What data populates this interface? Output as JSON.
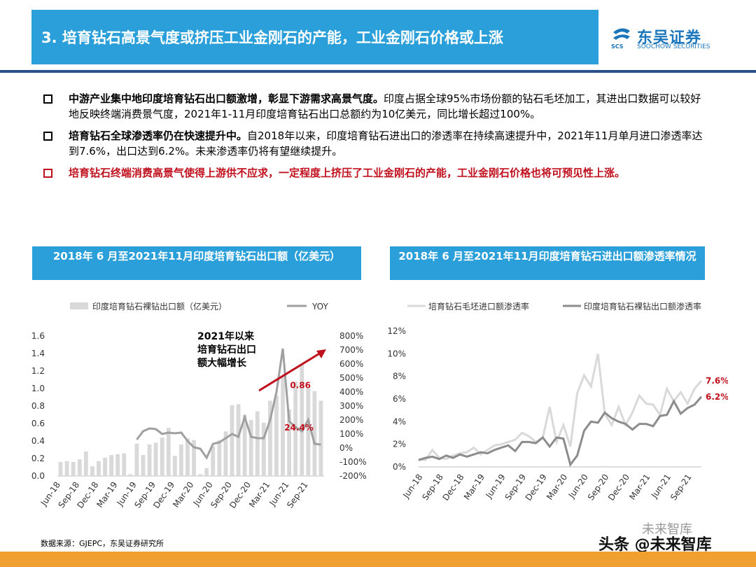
{
  "header": {
    "title": "3. 培育钻石高景气度或挤压工业金刚石的产能，工业金刚石价格或上涨",
    "logo_cn": "东吴证券",
    "logo_en": "SOOCHOW SECURITIES",
    "logo_abbr": "SCS"
  },
  "bullets": [
    {
      "bold": "中游产业集中地印度培育钻石出口额激增，彰显下游需求高景气度。",
      "text": "印度占据全球95%市场份额的钻石毛坯加工，其进出口数据可以较好地反映终端消费景气度，2021年1-11月印度培育钻石出口总额约为10亿美元，同比增长超过100%。"
    },
    {
      "bold": "培育钻石全球渗透率仍在快速提升中。",
      "text": "自2018年以来，印度培育钻石进出口的渗透率在持续高速提升中，2021年11月单月进口渗透率达到7.6%，出口达到6.2%。未来渗透率仍将有望继续提升。"
    },
    {
      "bold": "培育钻石终端消费高景气使得上游供不应求，一定程度上挤压了工业金刚石的产能，工业金刚石价格也将可预见性上涨。",
      "text": ""
    }
  ],
  "chart1": {
    "title": "2018年 6 月至2021年11月印度培育钻石出口额（亿美元）",
    "legend_bar": "印度培育钻石裸钻出口额（亿美元）",
    "legend_line": "YOY",
    "annotation": "2021年以来培育钻石出口额大幅增长",
    "annotation_lines": [
      "2021年以来",
      "培育钻石出口",
      "额大幅增长"
    ],
    "label_last_bar": "0.86",
    "label_last_yoy": "24.4%",
    "left_ticks": [
      "0.0",
      "0.2",
      "0.4",
      "0.6",
      "0.8",
      "1.0",
      "1.2",
      "1.4",
      "1.6"
    ],
    "right_ticks": [
      "-200%",
      "-100%",
      "0%",
      "100%",
      "200%",
      "300%",
      "400%",
      "500%",
      "600%",
      "700%",
      "800%"
    ],
    "x_ticks": [
      "Jun-18",
      "Sep-18",
      "Dec-18",
      "Mar-19",
      "Jun-19",
      "Sep-19",
      "Dec-19",
      "Mar-20",
      "Jun-20",
      "Sep-20",
      "Dec-20",
      "Mar-21",
      "Jun-21",
      "Sep-21"
    ]
  },
  "chart2": {
    "title": "2018年 6 月至2021年11月印度培育钻石进出口额渗透率情况",
    "legend_import": "培育钻石毛坯进口额渗透率",
    "legend_export": "印度培育钻石裸钻出口额渗透率",
    "label_import": "7.6%",
    "label_export": "6.2%",
    "y_ticks": [
      "0%",
      "2%",
      "4%",
      "6%",
      "8%",
      "10%",
      "12%"
    ],
    "x_ticks": [
      "Jun-18",
      "Sep-18",
      "Dec-18",
      "Mar-19",
      "Jun-19",
      "Sep-19",
      "Dec-19",
      "Mar-20",
      "Jun-20",
      "Sep-20",
      "Dec-20",
      "Mar-21",
      "Jun-21",
      "Sep-21"
    ]
  },
  "chart_data": [
    {
      "type": "bar",
      "title": "2018年 6 月至2021年11月印度培育钻石出口额（亿美元）",
      "x": [
        "2018-06",
        "2018-07",
        "2018-08",
        "2018-09",
        "2018-10",
        "2018-11",
        "2018-12",
        "2019-01",
        "2019-02",
        "2019-03",
        "2019-04",
        "2019-05",
        "2019-06",
        "2019-07",
        "2019-08",
        "2019-09",
        "2019-10",
        "2019-11",
        "2019-12",
        "2020-01",
        "2020-02",
        "2020-03",
        "2020-04",
        "2020-05",
        "2020-06",
        "2020-07",
        "2020-08",
        "2020-09",
        "2020-10",
        "2020-11",
        "2020-12",
        "2021-01",
        "2021-02",
        "2021-03",
        "2021-04",
        "2021-05",
        "2021-06",
        "2021-07",
        "2021-08",
        "2021-09",
        "2021-10",
        "2021-11"
      ],
      "ylim": [
        0,
        1.6
      ],
      "y2lim": [
        -200,
        800
      ],
      "series": [
        {
          "name": "印度培育钻石裸钻出口额（亿美元）",
          "axis": "left",
          "type": "bar",
          "values": [
            0.16,
            0.17,
            0.16,
            0.19,
            0.28,
            0.11,
            0.17,
            0.21,
            0.24,
            0.25,
            0.26,
            0.02,
            0.37,
            0.24,
            0.36,
            0.38,
            0.44,
            0.55,
            0.23,
            0.36,
            0.43,
            0.41,
            0.02,
            0.09,
            0.34,
            0.41,
            0.51,
            0.81,
            0.82,
            0.7,
            0.64,
            0.74,
            0.61,
            0.86,
            0.92,
            1.15,
            0.76,
            1.08,
            1.28,
            1.0,
            0.97,
            0.86
          ]
        },
        {
          "name": "YOY",
          "axis": "right",
          "type": "line",
          "values": [
            null,
            null,
            null,
            null,
            null,
            null,
            null,
            null,
            null,
            null,
            null,
            null,
            60,
            120,
            140,
            135,
            100,
            110,
            105,
            110,
            50,
            5,
            -5,
            -70,
            30,
            40,
            70,
            100,
            80,
            220,
            80,
            70,
            70,
            200,
            400,
            710,
            190,
            150,
            120,
            200,
            30,
            24.4
          ]
        }
      ]
    },
    {
      "type": "line",
      "title": "2018年 6 月至2021年11月印度培育钻石进出口额渗透率情况",
      "x": [
        "2018-06",
        "2018-07",
        "2018-08",
        "2018-09",
        "2018-10",
        "2018-11",
        "2018-12",
        "2019-01",
        "2019-02",
        "2019-03",
        "2019-04",
        "2019-05",
        "2019-06",
        "2019-07",
        "2019-08",
        "2019-09",
        "2019-10",
        "2019-11",
        "2019-12",
        "2020-01",
        "2020-02",
        "2020-03",
        "2020-04",
        "2020-05",
        "2020-06",
        "2020-07",
        "2020-08",
        "2020-09",
        "2020-10",
        "2020-11",
        "2020-12",
        "2021-01",
        "2021-02",
        "2021-03",
        "2021-04",
        "2021-05",
        "2021-06",
        "2021-07",
        "2021-08",
        "2021-09",
        "2021-10",
        "2021-11"
      ],
      "ylim": [
        0,
        12
      ],
      "series": [
        {
          "name": "培育钻石毛坯进口额渗透率",
          "values": [
            0.7,
            0.6,
            1.5,
            0.8,
            0.7,
            1.0,
            1.2,
            1.3,
            1.7,
            1.1,
            1.5,
            1.9,
            2.0,
            2.2,
            2.4,
            3.0,
            2.7,
            2.2,
            2.6,
            5.3,
            2.2,
            3.7,
            1.8,
            6.5,
            8.1,
            7.1,
            10.0,
            4.7,
            3.7,
            5.3,
            3.7,
            4.8,
            6.3,
            5.6,
            5.5,
            4.6,
            6.9,
            5.8,
            6.6,
            5.6,
            6.9,
            7.6
          ]
        },
        {
          "name": "印度培育钻石裸钻出口额渗透率",
          "values": [
            0.6,
            0.8,
            0.9,
            0.7,
            1.0,
            0.8,
            1.1,
            0.9,
            1.1,
            1.3,
            1.2,
            1.5,
            1.7,
            1.9,
            1.4,
            2.2,
            2.2,
            2.1,
            2.6,
            1.8,
            2.6,
            2.5,
            0.2,
            1.0,
            3.2,
            4.0,
            3.9,
            4.8,
            4.3,
            4.0,
            3.8,
            3.3,
            3.8,
            3.8,
            3.6,
            4.5,
            4.6,
            5.8,
            4.7,
            5.2,
            5.5,
            6.2
          ]
        }
      ]
    }
  ],
  "footnote": "数据来源：GJEPC，东吴证券研究所",
  "watermark": "头条 @未来智库",
  "watermark_faint": "未来智库"
}
